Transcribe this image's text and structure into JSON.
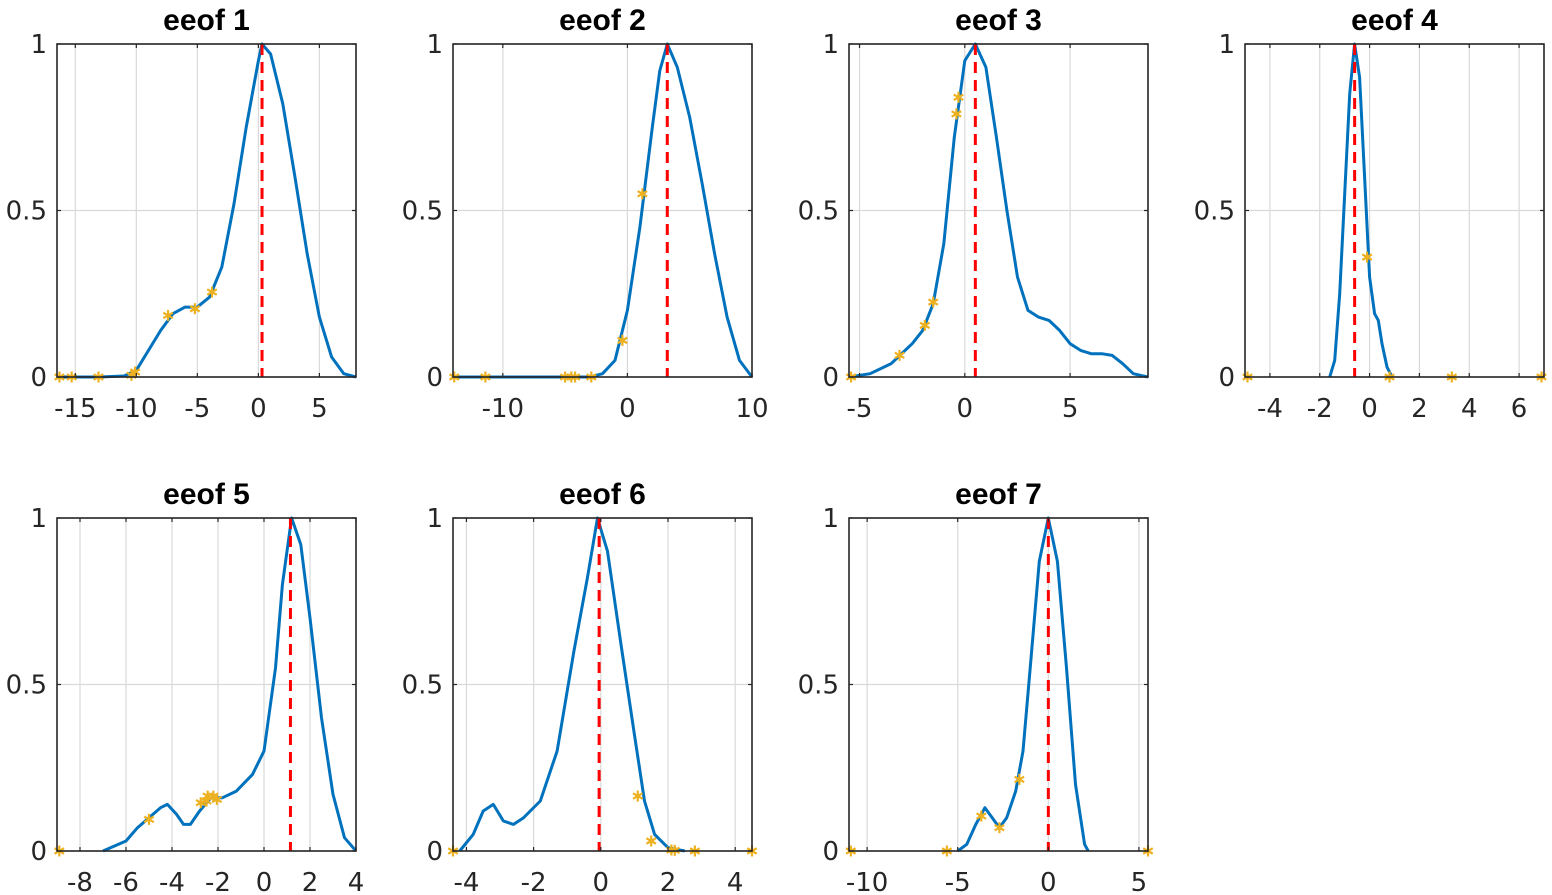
{
  "chart_data": [
    {
      "type": "line",
      "title": "eeof 1",
      "xlim": [
        -16.5,
        8
      ],
      "ylim": [
        0,
        1
      ],
      "xticks": [
        -15,
        -10,
        -5,
        0,
        5
      ],
      "xtick_labels": [
        "-15",
        "-10",
        "-5",
        "0",
        "5"
      ],
      "yticks": [
        0,
        0.5,
        1
      ],
      "ytick_labels": [
        "0",
        "0.5",
        "1"
      ],
      "grid": true,
      "curve": [
        [
          -16.5,
          0
        ],
        [
          -13,
          0
        ],
        [
          -11,
          0.003
        ],
        [
          -10,
          0.02
        ],
        [
          -9,
          0.08
        ],
        [
          -8,
          0.14
        ],
        [
          -7,
          0.19
        ],
        [
          -6,
          0.21
        ],
        [
          -5,
          0.21
        ],
        [
          -4,
          0.24
        ],
        [
          -3,
          0.33
        ],
        [
          -2,
          0.52
        ],
        [
          -1,
          0.75
        ],
        [
          0,
          0.95
        ],
        [
          0.3,
          1.0
        ],
        [
          1,
          0.97
        ],
        [
          2,
          0.82
        ],
        [
          3,
          0.6
        ],
        [
          4,
          0.37
        ],
        [
          5,
          0.18
        ],
        [
          6,
          0.06
        ],
        [
          7,
          0.01
        ],
        [
          8,
          0
        ]
      ],
      "peak_x": 0.3,
      "markers": [
        [
          -16.3,
          0
        ],
        [
          -15.3,
          0
        ],
        [
          -13.1,
          0
        ],
        [
          -10.4,
          0.005
        ],
        [
          -10.1,
          0.015
        ],
        [
          -7.4,
          0.185
        ],
        [
          -5.2,
          0.205
        ],
        [
          -3.8,
          0.255
        ]
      ]
    },
    {
      "type": "line",
      "title": "eeof 2",
      "xlim": [
        -14,
        10
      ],
      "ylim": [
        0,
        1
      ],
      "xticks": [
        -10,
        0,
        10
      ],
      "xtick_labels": [
        "-10",
        "0",
        "10"
      ],
      "yticks": [
        0,
        0.5,
        1
      ],
      "ytick_labels": [
        "0",
        "0.5",
        "1"
      ],
      "grid": true,
      "curve": [
        [
          -14,
          0
        ],
        [
          -3,
          0
        ],
        [
          -2,
          0.01
        ],
        [
          -1,
          0.05
        ],
        [
          0,
          0.2
        ],
        [
          1,
          0.45
        ],
        [
          2,
          0.75
        ],
        [
          2.6,
          0.92
        ],
        [
          3.2,
          1.0
        ],
        [
          4,
          0.93
        ],
        [
          5,
          0.78
        ],
        [
          6,
          0.58
        ],
        [
          7,
          0.37
        ],
        [
          8,
          0.18
        ],
        [
          9,
          0.05
        ],
        [
          10,
          0
        ]
      ],
      "peak_x": 3.2,
      "markers": [
        [
          -13.9,
          0
        ],
        [
          -11.4,
          0
        ],
        [
          -5,
          0
        ],
        [
          -4.5,
          0
        ],
        [
          -4.2,
          0
        ],
        [
          -2.9,
          0
        ],
        [
          -0.4,
          0.11
        ],
        [
          1.2,
          0.55
        ]
      ]
    },
    {
      "type": "line",
      "title": "eeof 3",
      "xlim": [
        -5.5,
        8.7
      ],
      "ylim": [
        0,
        1
      ],
      "xticks": [
        -5,
        0,
        5
      ],
      "xtick_labels": [
        "-5",
        "0",
        "5"
      ],
      "yticks": [
        0,
        0.5,
        1
      ],
      "ytick_labels": [
        "0",
        "0.5",
        "1"
      ],
      "grid": true,
      "curve": [
        [
          -5.5,
          0
        ],
        [
          -4.5,
          0.01
        ],
        [
          -3.5,
          0.04
        ],
        [
          -3,
          0.07
        ],
        [
          -2.5,
          0.1
        ],
        [
          -2,
          0.14
        ],
        [
          -1.5,
          0.22
        ],
        [
          -1,
          0.4
        ],
        [
          -0.5,
          0.72
        ],
        [
          0,
          0.95
        ],
        [
          0.5,
          1.0
        ],
        [
          1,
          0.93
        ],
        [
          1.5,
          0.72
        ],
        [
          2,
          0.5
        ],
        [
          2.5,
          0.3
        ],
        [
          3,
          0.2
        ],
        [
          3.5,
          0.18
        ],
        [
          4,
          0.17
        ],
        [
          4.5,
          0.14
        ],
        [
          5,
          0.1
        ],
        [
          5.5,
          0.08
        ],
        [
          6,
          0.07
        ],
        [
          6.5,
          0.07
        ],
        [
          7,
          0.065
        ],
        [
          7.5,
          0.04
        ],
        [
          8,
          0.01
        ],
        [
          8.7,
          0
        ]
      ],
      "peak_x": 0.5,
      "markers": [
        [
          -5.4,
          0
        ],
        [
          -3.1,
          0.065
        ],
        [
          -1.9,
          0.155
        ],
        [
          -1.5,
          0.225
        ],
        [
          -0.4,
          0.79
        ],
        [
          -0.3,
          0.84
        ]
      ]
    },
    {
      "type": "line",
      "title": "eeof 4",
      "xlim": [
        -5,
        7
      ],
      "ylim": [
        0,
        1
      ],
      "xticks": [
        -4,
        -2,
        0,
        2,
        4,
        6
      ],
      "xtick_labels": [
        "-4",
        "-2",
        "0",
        "2",
        "4",
        "6"
      ],
      "yticks": [
        0,
        0.5,
        1
      ],
      "ytick_labels": [
        "0",
        "0.5",
        "1"
      ],
      "grid": true,
      "curve": [
        [
          -1.6,
          0
        ],
        [
          -1.4,
          0.05
        ],
        [
          -1.2,
          0.25
        ],
        [
          -1,
          0.55
        ],
        [
          -0.8,
          0.85
        ],
        [
          -0.6,
          1.0
        ],
        [
          -0.4,
          0.9
        ],
        [
          -0.2,
          0.6
        ],
        [
          0,
          0.3
        ],
        [
          0.2,
          0.19
        ],
        [
          0.35,
          0.17
        ],
        [
          0.5,
          0.1
        ],
        [
          0.7,
          0.03
        ],
        [
          0.9,
          0
        ]
      ],
      "peak_x": -0.6,
      "markers": [
        [
          -4.9,
          0
        ],
        [
          -0.1,
          0.36
        ],
        [
          0.8,
          0
        ],
        [
          3.3,
          0
        ],
        [
          6.9,
          0
        ]
      ]
    },
    {
      "type": "line",
      "title": "eeof 5",
      "xlim": [
        -9,
        4
      ],
      "ylim": [
        0,
        1
      ],
      "xticks": [
        -8,
        -6,
        -4,
        -2,
        0,
        2,
        4
      ],
      "xtick_labels": [
        "-8",
        "-6",
        "-4",
        "-2",
        "0",
        "2",
        "4"
      ],
      "yticks": [
        0,
        0.5,
        1
      ],
      "ytick_labels": [
        "0",
        "0.5",
        "1"
      ],
      "grid": true,
      "curve": [
        [
          -7,
          0
        ],
        [
          -6,
          0.03
        ],
        [
          -5.5,
          0.07
        ],
        [
          -5,
          0.1
        ],
        [
          -4.5,
          0.13
        ],
        [
          -4.2,
          0.14
        ],
        [
          -3.8,
          0.11
        ],
        [
          -3.5,
          0.08
        ],
        [
          -3.2,
          0.08
        ],
        [
          -2.8,
          0.12
        ],
        [
          -2.3,
          0.16
        ],
        [
          -1.8,
          0.16
        ],
        [
          -1.2,
          0.18
        ],
        [
          -0.5,
          0.23
        ],
        [
          0,
          0.3
        ],
        [
          0.5,
          0.55
        ],
        [
          0.8,
          0.8
        ],
        [
          1.2,
          1.0
        ],
        [
          1.6,
          0.92
        ],
        [
          2,
          0.7
        ],
        [
          2.5,
          0.4
        ],
        [
          3,
          0.17
        ],
        [
          3.5,
          0.04
        ],
        [
          4,
          0
        ]
      ],
      "peak_x": 1.15,
      "markers": [
        [
          -8.9,
          0
        ],
        [
          -5,
          0.095
        ],
        [
          -2.75,
          0.145
        ],
        [
          -2.5,
          0.15
        ],
        [
          -2.45,
          0.165
        ],
        [
          -2.2,
          0.165
        ],
        [
          -2.05,
          0.155
        ]
      ]
    },
    {
      "type": "line",
      "title": "eeof 6",
      "xlim": [
        -4.4,
        4.5
      ],
      "ylim": [
        0,
        1
      ],
      "xticks": [
        -4,
        -2,
        0,
        2,
        4
      ],
      "xtick_labels": [
        "-4",
        "-2",
        "0",
        "2",
        "4"
      ],
      "yticks": [
        0,
        0.5,
        1
      ],
      "ytick_labels": [
        "0",
        "0.5",
        "1"
      ],
      "grid": true,
      "curve": [
        [
          -4.2,
          0
        ],
        [
          -3.8,
          0.05
        ],
        [
          -3.5,
          0.12
        ],
        [
          -3.2,
          0.14
        ],
        [
          -2.9,
          0.09
        ],
        [
          -2.6,
          0.08
        ],
        [
          -2.3,
          0.1
        ],
        [
          -1.8,
          0.15
        ],
        [
          -1.3,
          0.3
        ],
        [
          -0.8,
          0.6
        ],
        [
          -0.4,
          0.82
        ],
        [
          -0.1,
          1.0
        ],
        [
          0.2,
          0.9
        ],
        [
          0.6,
          0.62
        ],
        [
          1,
          0.35
        ],
        [
          1.3,
          0.15
        ],
        [
          1.6,
          0.05
        ],
        [
          2,
          0.01
        ],
        [
          2.5,
          0
        ]
      ],
      "peak_x": -0.05,
      "markers": [
        [
          -4.4,
          0
        ],
        [
          1.1,
          0.165
        ],
        [
          1.5,
          0.03
        ],
        [
          2.1,
          0.003
        ],
        [
          2.2,
          0.002
        ],
        [
          2.8,
          0
        ],
        [
          4.5,
          0
        ]
      ]
    },
    {
      "type": "line",
      "title": "eeof 7",
      "xlim": [
        -11,
        5.5
      ],
      "ylim": [
        0,
        1
      ],
      "xticks": [
        -10,
        -5,
        0,
        5
      ],
      "xtick_labels": [
        "-10",
        "-5",
        "0",
        "5"
      ],
      "yticks": [
        0,
        0.5,
        1
      ],
      "ytick_labels": [
        "0",
        "0.5",
        "1"
      ],
      "grid": true,
      "curve": [
        [
          -5,
          0
        ],
        [
          -4.5,
          0.02
        ],
        [
          -4,
          0.08
        ],
        [
          -3.5,
          0.13
        ],
        [
          -3.1,
          0.1
        ],
        [
          -2.7,
          0.07
        ],
        [
          -2.3,
          0.1
        ],
        [
          -1.8,
          0.18
        ],
        [
          -1.4,
          0.3
        ],
        [
          -1,
          0.55
        ],
        [
          -0.5,
          0.87
        ],
        [
          0,
          1.0
        ],
        [
          0.5,
          0.87
        ],
        [
          1,
          0.55
        ],
        [
          1.5,
          0.2
        ],
        [
          2,
          0.02
        ],
        [
          2.2,
          0
        ]
      ],
      "peak_x": 0,
      "markers": [
        [
          -10.9,
          0
        ],
        [
          -5.6,
          0
        ],
        [
          -3.7,
          0.105
        ],
        [
          -2.7,
          0.07
        ],
        [
          -1.6,
          0.215
        ],
        [
          5.5,
          0
        ]
      ]
    }
  ]
}
